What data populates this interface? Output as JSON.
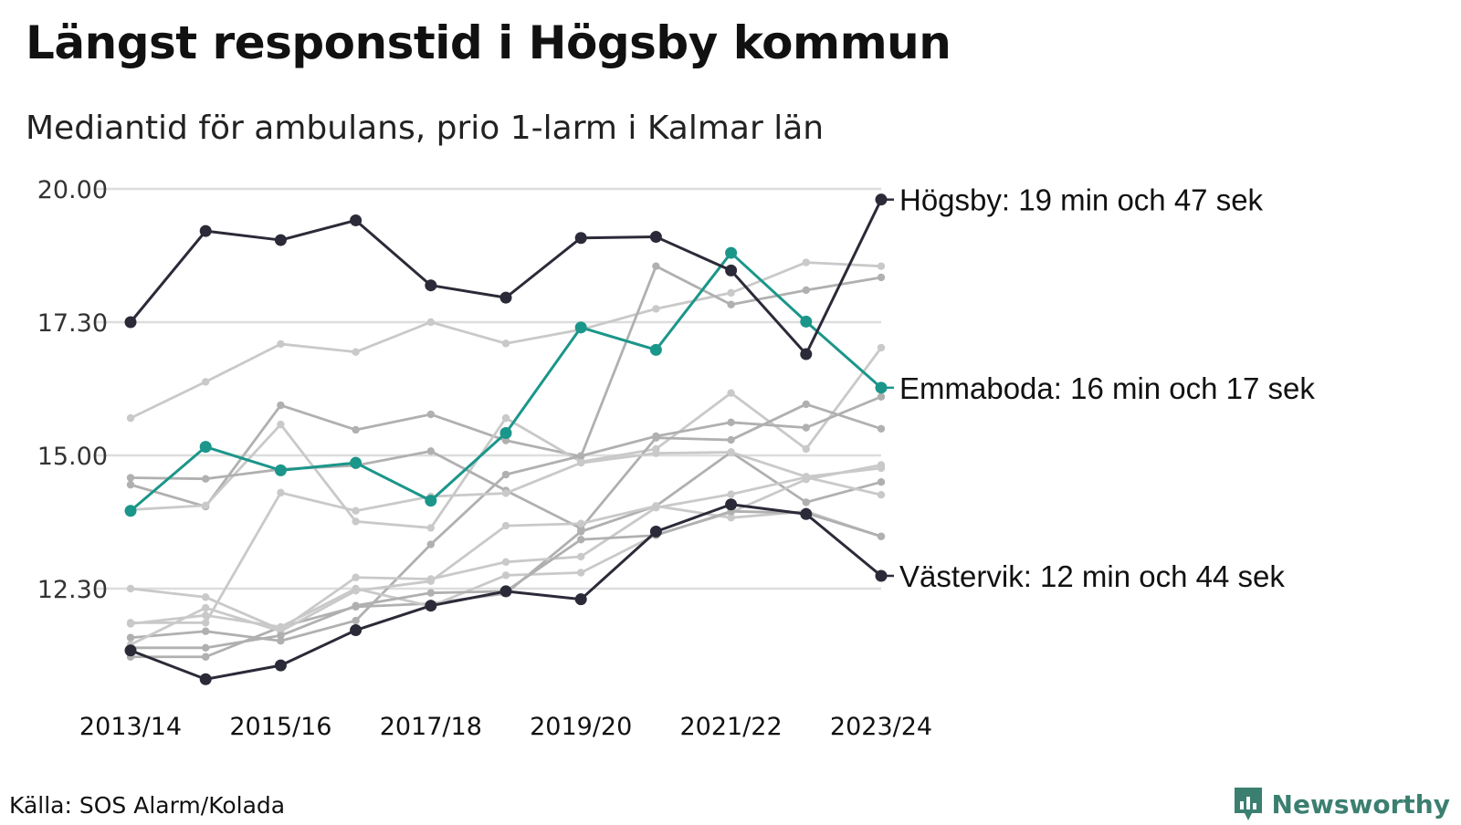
{
  "title": "Längst responstid i Högsby kommun",
  "subtitle": "Mediantid för ambulans, prio 1-larm i Kalmar län",
  "source": "Källa: SOS Alarm/Kolada",
  "brand": {
    "name": "Newsworthy",
    "icon": "newsworthy-logo-icon",
    "color": "#3b7f70"
  },
  "chart_data": {
    "type": "line",
    "x": [
      "2013/14",
      "2014/15",
      "2015/16",
      "2016/17",
      "2017/18",
      "2018/19",
      "2019/20",
      "2020/21",
      "2021/22",
      "2022/23",
      "2023/24"
    ],
    "x_tick_labels": [
      "2013/14",
      "2015/16",
      "2017/18",
      "2019/20",
      "2021/22",
      "2023/24"
    ],
    "y_ticks": [
      12.5,
      15.0,
      17.5,
      20.0
    ],
    "y_tick_labels": [
      "12.30",
      "15.00",
      "17.30",
      "20.00"
    ],
    "ylim": [
      10.7,
      20.3
    ],
    "y_unit": "minutes",
    "grid": true,
    "colors": {
      "highlight_dark": "#2b2a38",
      "highlight_green": "#1b968a",
      "background_series": [
        "#c9c9c9",
        "#b0b0b0"
      ],
      "grid": "#dddddd"
    },
    "series": [
      {
        "label": "",
        "highlight": false,
        "color": "#c9c9c9",
        "values": [
          15.7,
          16.38,
          17.09,
          16.94,
          17.5,
          17.1,
          17.36,
          17.75,
          18.05,
          18.62,
          18.55
        ]
      },
      {
        "label": "",
        "highlight": false,
        "color": "#b0b0b0",
        "values": [
          14.45,
          14.04,
          15.94,
          15.48,
          15.77,
          15.28,
          14.98,
          18.55,
          17.83,
          18.1,
          18.34
        ]
      },
      {
        "label": "",
        "highlight": false,
        "color": "#c9c9c9",
        "values": [
          13.98,
          14.06,
          15.58,
          13.76,
          13.64,
          15.7,
          14.88,
          15.12,
          16.17,
          15.12,
          17.02
        ]
      },
      {
        "label": "",
        "highlight": false,
        "color": "#b0b0b0",
        "values": [
          14.58,
          14.56,
          14.74,
          14.81,
          15.08,
          14.34,
          13.63,
          15.33,
          15.29,
          15.96,
          15.5
        ]
      },
      {
        "label": "",
        "highlight": false,
        "color": "#b0b0b0",
        "values": [
          11.58,
          11.7,
          11.52,
          11.9,
          13.33,
          14.64,
          14.99,
          15.36,
          15.62,
          15.52,
          16.1
        ]
      },
      {
        "label": "",
        "highlight": false,
        "color": "#b0b0b0",
        "values": [
          11.22,
          11.22,
          11.78,
          12.16,
          12.22,
          12.41,
          13.57,
          14.05,
          15.06,
          14.12,
          14.5
        ]
      },
      {
        "label": "",
        "highlight": false,
        "color": "#c9c9c9",
        "values": [
          11.86,
          11.86,
          14.3,
          13.96,
          14.23,
          14.29,
          14.86,
          15.04,
          15.06,
          14.6,
          14.76
        ]
      },
      {
        "label": "",
        "highlight": false,
        "color": "#c9c9c9",
        "values": [
          12.5,
          12.34,
          11.73,
          12.71,
          12.68,
          13.0,
          13.1,
          14.02,
          14.27,
          14.59,
          14.26
        ]
      },
      {
        "label": "",
        "highlight": false,
        "color": "#c9c9c9",
        "values": [
          11.45,
          12.14,
          11.7,
          12.46,
          12.64,
          13.68,
          13.72,
          14.05,
          13.83,
          13.95,
          13.48
        ]
      },
      {
        "label": "",
        "highlight": false,
        "color": "#c9c9c9",
        "values": [
          11.84,
          12.0,
          11.78,
          12.5,
          12.17,
          12.75,
          12.8,
          13.51,
          13.93,
          14.55,
          14.82
        ]
      },
      {
        "label": "",
        "highlight": false,
        "color": "#b0b0b0",
        "values": [
          11.39,
          11.39,
          11.62,
          12.18,
          12.42,
          12.45,
          13.42,
          13.5,
          13.95,
          13.92,
          13.48
        ]
      },
      {
        "label": "Emmaboda: 16 min och 17 sek",
        "highlight": true,
        "color": "#1b968a",
        "values": [
          13.96,
          15.16,
          14.72,
          14.86,
          14.15,
          15.42,
          17.4,
          16.98,
          18.8,
          17.51,
          16.27
        ]
      },
      {
        "label": "Västervik: 12 min och 44 sek",
        "highlight": true,
        "color": "#2b2a38",
        "values": [
          11.34,
          10.8,
          11.06,
          11.72,
          12.18,
          12.45,
          12.3,
          13.57,
          14.08,
          13.9,
          12.74
        ]
      },
      {
        "label": "Högsby: 19 min och 47 sek",
        "highlight": true,
        "color": "#2b2a38",
        "values": [
          17.5,
          19.21,
          19.04,
          19.41,
          18.19,
          17.96,
          19.08,
          19.1,
          18.47,
          16.9,
          19.8
        ]
      }
    ]
  }
}
